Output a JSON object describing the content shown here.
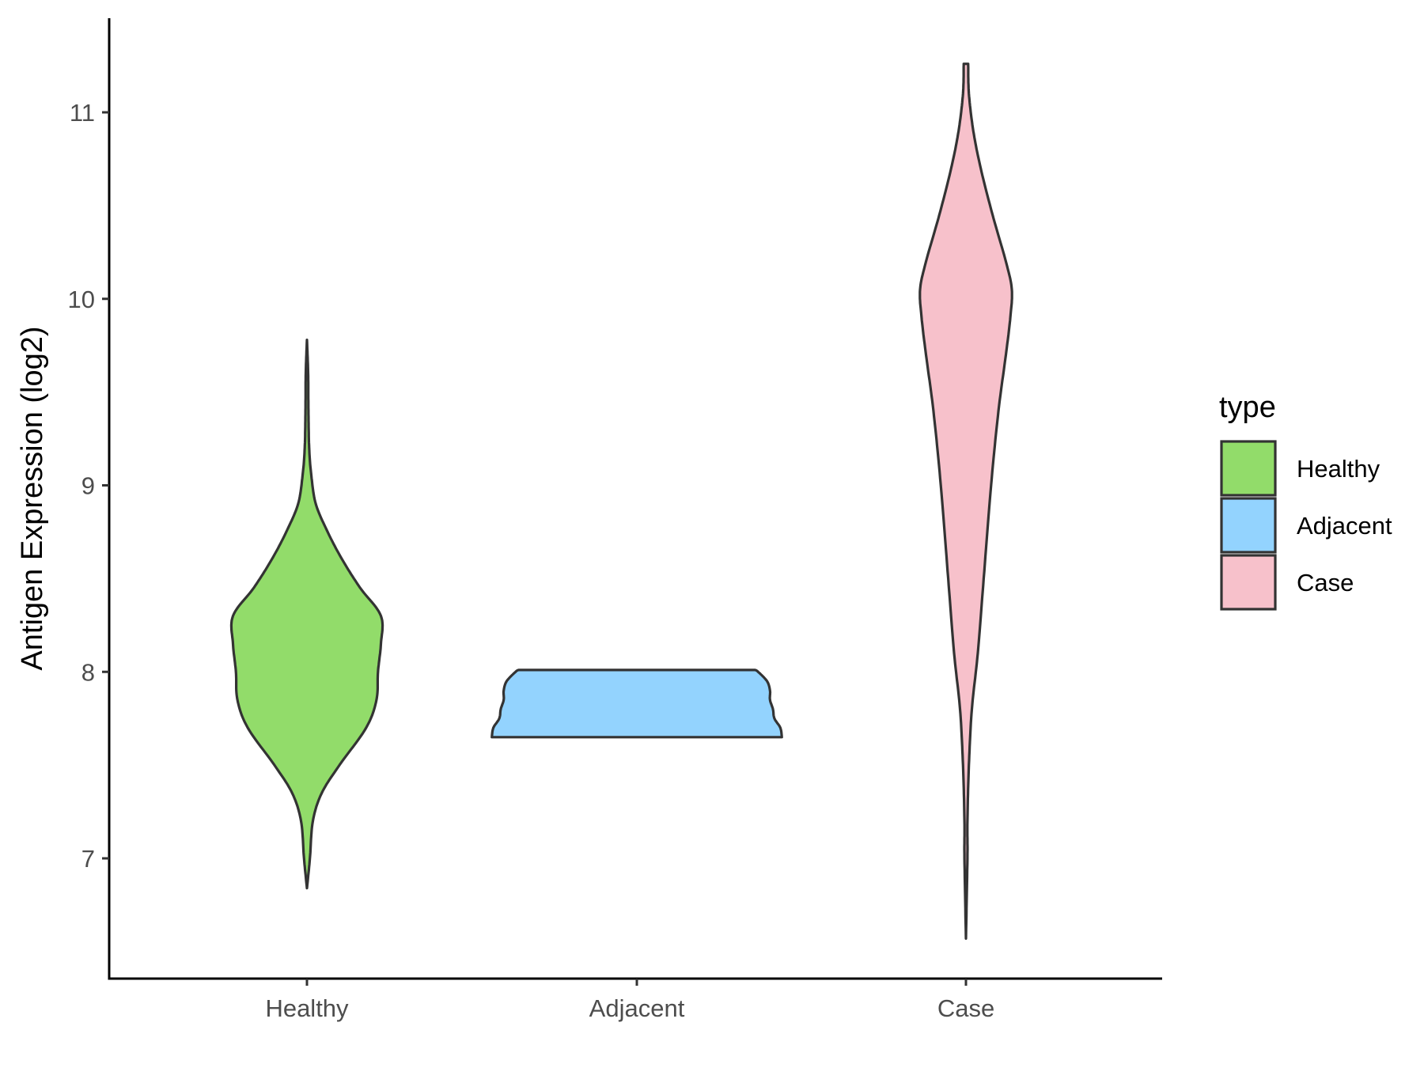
{
  "chart_data": {
    "type": "violin",
    "title": "",
    "xlabel": "",
    "ylabel": "Antigen Expression (log2)",
    "ylim": [
      6.45,
      11.5
    ],
    "y_ticks": [
      7,
      8,
      9,
      10,
      11
    ],
    "y_tick_labels": [
      "7",
      "8",
      "9",
      "10",
      "11"
    ],
    "categories": [
      "Healthy",
      "Adjacent",
      "Case"
    ],
    "grid": false,
    "legend": {
      "title": "type",
      "position": "right",
      "entries": [
        "Healthy",
        "Adjacent",
        "Case"
      ]
    },
    "series": [
      {
        "name": "Healthy",
        "color": "#92dc6a",
        "min": 6.84,
        "max": 9.78,
        "density_profile": [
          [
            6.84,
            0.0
          ],
          [
            7.0,
            0.02
          ],
          [
            7.2,
            0.04
          ],
          [
            7.35,
            0.1
          ],
          [
            7.5,
            0.22
          ],
          [
            7.7,
            0.4
          ],
          [
            7.85,
            0.47
          ],
          [
            8.0,
            0.48
          ],
          [
            8.15,
            0.5
          ],
          [
            8.3,
            0.5
          ],
          [
            8.45,
            0.36
          ],
          [
            8.6,
            0.24
          ],
          [
            8.75,
            0.14
          ],
          [
            8.9,
            0.06
          ],
          [
            9.05,
            0.03
          ],
          [
            9.2,
            0.015
          ],
          [
            9.4,
            0.01
          ],
          [
            9.6,
            0.008
          ],
          [
            9.78,
            0.0
          ]
        ]
      },
      {
        "name": "Adjacent",
        "color": "#93d3fe",
        "min": 7.65,
        "max": 8.01,
        "density_profile": [
          [
            7.65,
            0.98
          ],
          [
            7.7,
            0.97
          ],
          [
            7.75,
            0.93
          ],
          [
            7.8,
            0.92
          ],
          [
            7.85,
            0.9
          ],
          [
            7.9,
            0.9
          ],
          [
            7.95,
            0.88
          ],
          [
            8.0,
            0.82
          ],
          [
            8.01,
            0.8
          ]
        ]
      },
      {
        "name": "Case",
        "color": "#f7c1cb",
        "min": 6.57,
        "max": 11.26,
        "density_profile": [
          [
            6.57,
            0.0
          ],
          [
            7.0,
            0.01
          ],
          [
            7.2,
            0.01
          ],
          [
            7.5,
            0.02
          ],
          [
            7.8,
            0.04
          ],
          [
            8.1,
            0.08
          ],
          [
            8.5,
            0.12
          ],
          [
            9.0,
            0.17
          ],
          [
            9.4,
            0.22
          ],
          [
            9.7,
            0.27
          ],
          [
            9.9,
            0.3
          ],
          [
            10.05,
            0.31
          ],
          [
            10.2,
            0.27
          ],
          [
            10.45,
            0.18
          ],
          [
            10.7,
            0.1
          ],
          [
            10.9,
            0.05
          ],
          [
            11.1,
            0.02
          ],
          [
            11.26,
            0.015
          ]
        ]
      }
    ]
  }
}
